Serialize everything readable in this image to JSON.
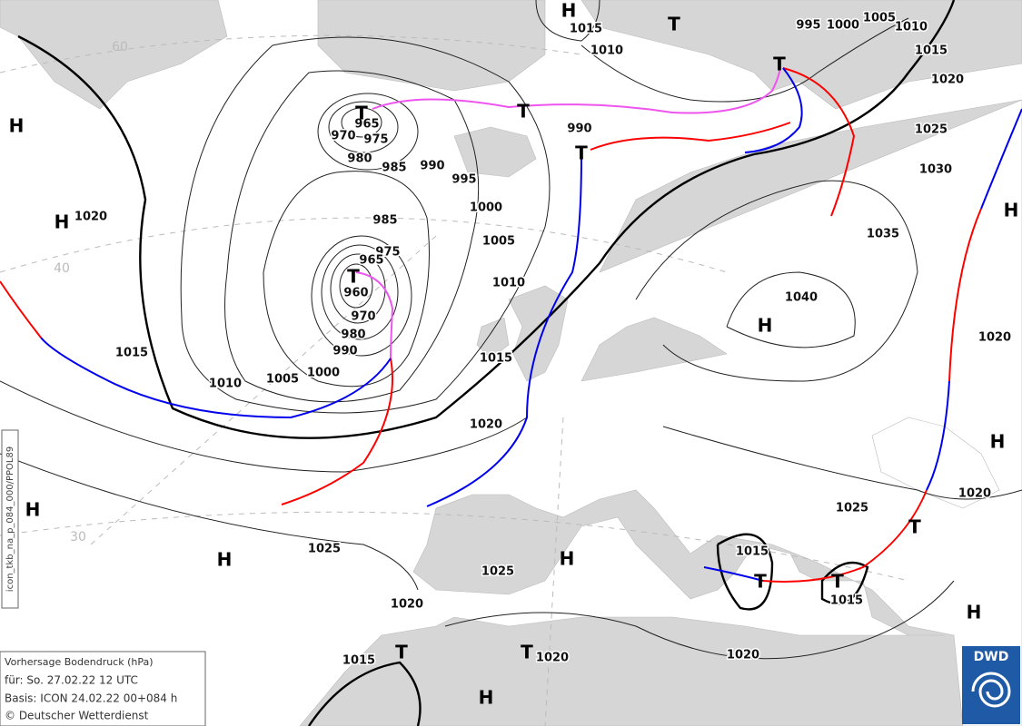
{
  "map": {
    "pressure_labels": [
      1015,
      1010,
      995,
      1000,
      1005,
      1010,
      1015,
      1020,
      1025,
      1030,
      1035,
      1040,
      1020,
      1020,
      1025,
      1015,
      1015,
      1020,
      1020,
      1025,
      1020,
      1015,
      1025,
      1020,
      1015,
      1010,
      1005,
      1000,
      995,
      990,
      985,
      980,
      970,
      975,
      965,
      990,
      985,
      975,
      965,
      960,
      970,
      980,
      990,
      1000,
      1005,
      1010,
      1015,
      1020
    ],
    "centers": [
      "H",
      "T",
      "T",
      "H",
      "T",
      "T",
      "T",
      "H",
      "T",
      "H",
      "H",
      "H",
      "H",
      "H",
      "H",
      "T",
      "T",
      "T",
      "H",
      "T",
      "T",
      "H"
    ],
    "grid_labels": [
      "60",
      "40",
      "30"
    ]
  },
  "info": {
    "title": "Vorhersage Bodendruck (hPa)",
    "valid": "für:  So. 27.02.22  12 UTC",
    "base": "Basis: ICON  24.02.22 00+084 h",
    "credit": "© Deutscher Wetterdienst"
  },
  "logo": "DWD",
  "side_label": "icon_tkb_na_p_084_000/PPOL89"
}
